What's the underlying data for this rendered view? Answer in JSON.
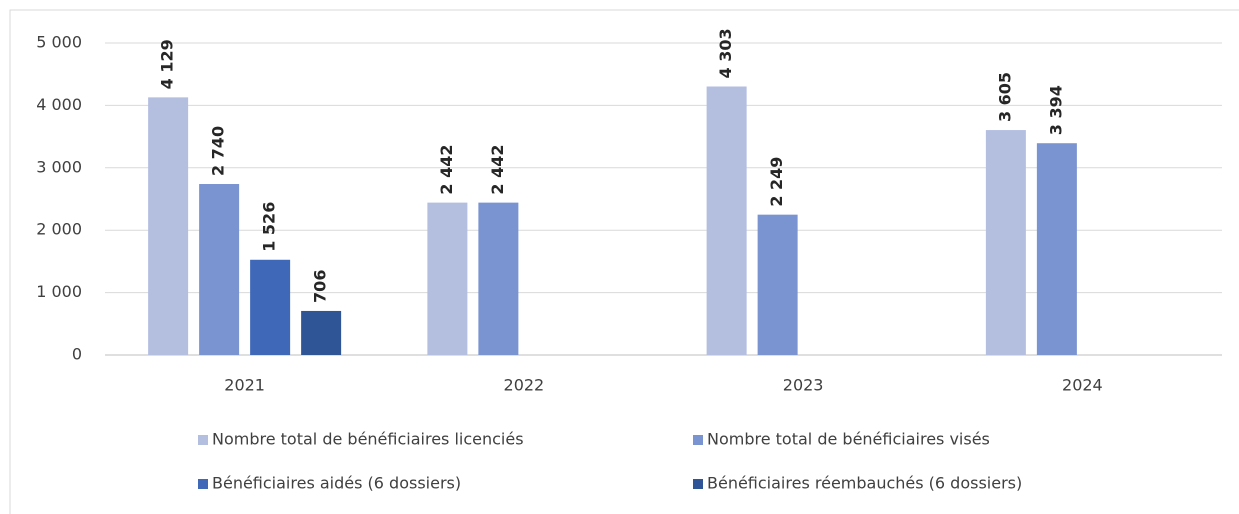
{
  "chart_data": {
    "type": "bar",
    "categories": [
      "2021",
      "2022",
      "2023",
      "2024"
    ],
    "series": [
      {
        "name": "Nombre total de bénéficiaires licenciés",
        "color": "#b4bfe0",
        "values": [
          4129,
          2442,
          4303,
          3605
        ],
        "value_labels": [
          "4 129",
          "2 442",
          "4 303",
          "3 605"
        ]
      },
      {
        "name": "Nombre total de bénéficiaires visés",
        "color": "#7a93d1",
        "values": [
          2740,
          2442,
          2249,
          3394
        ],
        "value_labels": [
          "2 740",
          "2 442",
          "2 249",
          "3 394"
        ]
      },
      {
        "name": "Bénéficiaires aidés (6 dossiers)",
        "color": "#3f68b9",
        "values": [
          1526,
          null,
          null,
          null
        ],
        "value_labels": [
          "1 526",
          null,
          null,
          null
        ]
      },
      {
        "name": "Bénéficiaires réembauchés (6 dossiers)",
        "color": "#2f5597",
        "values": [
          706,
          null,
          null,
          null
        ],
        "value_labels": [
          "706",
          null,
          null,
          null
        ]
      }
    ],
    "ylim": [
      0,
      5000
    ],
    "yticks": [
      0,
      {
        "value": 1000,
        "label": "1 000"
      },
      {
        "value": 2000,
        "label": "2 000"
      },
      {
        "value": 3000,
        "label": "3 000"
      },
      {
        "value": 4000,
        "label": "4 000"
      },
      {
        "value": 5000,
        "label": "5 000"
      }
    ],
    "grid": true,
    "legend": "bottom"
  }
}
